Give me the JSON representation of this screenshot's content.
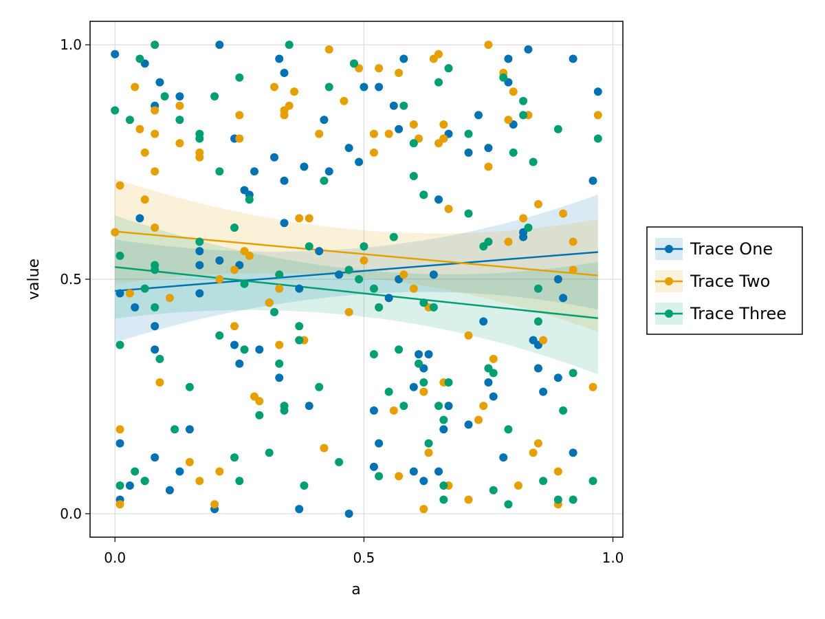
{
  "chart_data": {
    "type": "scatter",
    "title": "",
    "xlabel": "a",
    "ylabel": "value",
    "xlim": [
      -0.05,
      1.02
    ],
    "ylim": [
      -0.05,
      1.05
    ],
    "xticks": [
      0.0,
      0.5,
      1.0
    ],
    "yticks": [
      0.0,
      0.5,
      1.0
    ],
    "xtick_labels": [
      "0.0",
      "0.5",
      "1.0"
    ],
    "ytick_labels": [
      "0.0",
      "0.5",
      "1.0"
    ],
    "grid": true,
    "legend_position": "right",
    "series": [
      {
        "name": "Trace One",
        "color": "#0072b2",
        "fit": {
          "x": [
            0.0,
            0.97
          ],
          "y": [
            0.475,
            0.558
          ]
        },
        "band": {
          "lower": [
            0.365,
            0.435
          ],
          "upper": [
            0.585,
            0.68
          ]
        },
        "points": [
          [
            0.0,
            0.98
          ],
          [
            0.01,
            0.15
          ],
          [
            0.01,
            0.47
          ],
          [
            0.01,
            0.03
          ],
          [
            0.03,
            0.06
          ],
          [
            0.04,
            0.44
          ],
          [
            0.05,
            0.63
          ],
          [
            0.06,
            0.96
          ],
          [
            0.06,
            0.07
          ],
          [
            0.08,
            0.87
          ],
          [
            0.08,
            0.35
          ],
          [
            0.08,
            0.12
          ],
          [
            0.08,
            0.4
          ],
          [
            0.09,
            0.92
          ],
          [
            0.11,
            0.05
          ],
          [
            0.13,
            0.09
          ],
          [
            0.13,
            0.89
          ],
          [
            0.15,
            0.18
          ],
          [
            0.17,
            0.56
          ],
          [
            0.17,
            0.47
          ],
          [
            0.17,
            0.53
          ],
          [
            0.2,
            0.01
          ],
          [
            0.21,
            1.0
          ],
          [
            0.21,
            0.54
          ],
          [
            0.24,
            0.8
          ],
          [
            0.24,
            0.36
          ],
          [
            0.25,
            0.53
          ],
          [
            0.25,
            0.32
          ],
          [
            0.26,
            0.69
          ],
          [
            0.27,
            0.68
          ],
          [
            0.28,
            0.73
          ],
          [
            0.29,
            0.35
          ],
          [
            0.31,
            0.45
          ],
          [
            0.32,
            0.76
          ],
          [
            0.33,
            0.97
          ],
          [
            0.33,
            0.29
          ],
          [
            0.34,
            0.62
          ],
          [
            0.34,
            0.94
          ],
          [
            0.34,
            0.71
          ],
          [
            0.37,
            0.48
          ],
          [
            0.37,
            0.01
          ],
          [
            0.38,
            0.74
          ],
          [
            0.39,
            0.23
          ],
          [
            0.41,
            0.56
          ],
          [
            0.42,
            0.84
          ],
          [
            0.43,
            0.73
          ],
          [
            0.45,
            0.51
          ],
          [
            0.47,
            0.78
          ],
          [
            0.47,
            0.0
          ],
          [
            0.48,
            0.96
          ],
          [
            0.49,
            0.75
          ],
          [
            0.5,
            0.91
          ],
          [
            0.52,
            0.1
          ],
          [
            0.52,
            0.22
          ],
          [
            0.53,
            0.91
          ],
          [
            0.53,
            0.15
          ],
          [
            0.55,
            0.46
          ],
          [
            0.56,
            0.87
          ],
          [
            0.57,
            0.82
          ],
          [
            0.57,
            0.5
          ],
          [
            0.58,
            0.97
          ],
          [
            0.6,
            0.27
          ],
          [
            0.6,
            0.09
          ],
          [
            0.61,
            0.34
          ],
          [
            0.62,
            0.31
          ],
          [
            0.62,
            0.07
          ],
          [
            0.62,
            0.68
          ],
          [
            0.63,
            0.34
          ],
          [
            0.64,
            0.51
          ],
          [
            0.65,
            0.67
          ],
          [
            0.65,
            0.09
          ],
          [
            0.66,
            0.18
          ],
          [
            0.66,
            0.8
          ],
          [
            0.67,
            0.23
          ],
          [
            0.67,
            0.81
          ],
          [
            0.71,
            0.77
          ],
          [
            0.71,
            0.19
          ],
          [
            0.73,
            0.85
          ],
          [
            0.74,
            0.41
          ],
          [
            0.75,
            0.78
          ],
          [
            0.75,
            0.28
          ],
          [
            0.76,
            0.25
          ],
          [
            0.78,
            0.12
          ],
          [
            0.79,
            0.97
          ],
          [
            0.8,
            0.83
          ],
          [
            0.82,
            0.6
          ],
          [
            0.82,
            0.59
          ],
          [
            0.83,
            0.99
          ],
          [
            0.84,
            0.37
          ],
          [
            0.85,
            0.36
          ],
          [
            0.85,
            0.31
          ],
          [
            0.86,
            0.26
          ],
          [
            0.89,
            0.29
          ],
          [
            0.89,
            0.5
          ],
          [
            0.9,
            0.46
          ],
          [
            0.92,
            0.97
          ],
          [
            0.92,
            0.13
          ],
          [
            0.96,
            0.71
          ],
          [
            0.97,
            0.9
          ],
          [
            0.79,
            0.92
          ]
        ]
      },
      {
        "name": "Trace Two",
        "color": "#e69f00",
        "fit": {
          "x": [
            0.0,
            0.97
          ],
          "y": [
            0.602,
            0.508
          ]
        },
        "band": {
          "lower": [
            0.49,
            0.39
          ],
          "upper": [
            0.715,
            0.63
          ]
        },
        "points": [
          [
            0.0,
            0.6
          ],
          [
            0.01,
            0.7
          ],
          [
            0.01,
            0.18
          ],
          [
            0.01,
            0.02
          ],
          [
            0.03,
            0.47
          ],
          [
            0.04,
            0.91
          ],
          [
            0.05,
            0.82
          ],
          [
            0.06,
            0.67
          ],
          [
            0.06,
            0.77
          ],
          [
            0.08,
            0.86
          ],
          [
            0.08,
            0.81
          ],
          [
            0.08,
            0.73
          ],
          [
            0.08,
            0.61
          ],
          [
            0.09,
            0.28
          ],
          [
            0.11,
            0.46
          ],
          [
            0.13,
            0.79
          ],
          [
            0.13,
            0.87
          ],
          [
            0.15,
            0.11
          ],
          [
            0.17,
            0.77
          ],
          [
            0.17,
            0.76
          ],
          [
            0.17,
            0.07
          ],
          [
            0.2,
            0.02
          ],
          [
            0.21,
            0.09
          ],
          [
            0.21,
            0.5
          ],
          [
            0.24,
            0.4
          ],
          [
            0.24,
            0.52
          ],
          [
            0.25,
            0.8
          ],
          [
            0.25,
            0.85
          ],
          [
            0.26,
            0.56
          ],
          [
            0.27,
            0.55
          ],
          [
            0.28,
            0.25
          ],
          [
            0.29,
            0.24
          ],
          [
            0.31,
            0.45
          ],
          [
            0.32,
            0.91
          ],
          [
            0.33,
            0.48
          ],
          [
            0.33,
            0.36
          ],
          [
            0.34,
            0.86
          ],
          [
            0.34,
            0.85
          ],
          [
            0.35,
            0.87
          ],
          [
            0.36,
            0.9
          ],
          [
            0.37,
            0.63
          ],
          [
            0.38,
            0.37
          ],
          [
            0.39,
            0.63
          ],
          [
            0.41,
            0.81
          ],
          [
            0.42,
            0.14
          ],
          [
            0.43,
            0.99
          ],
          [
            0.46,
            0.88
          ],
          [
            0.47,
            0.43
          ],
          [
            0.48,
            0.96
          ],
          [
            0.49,
            0.95
          ],
          [
            0.5,
            0.54
          ],
          [
            0.52,
            0.81
          ],
          [
            0.52,
            0.77
          ],
          [
            0.53,
            0.95
          ],
          [
            0.53,
            0.44
          ],
          [
            0.55,
            0.81
          ],
          [
            0.56,
            0.22
          ],
          [
            0.57,
            0.94
          ],
          [
            0.57,
            0.08
          ],
          [
            0.58,
            0.51
          ],
          [
            0.6,
            0.83
          ],
          [
            0.6,
            0.48
          ],
          [
            0.61,
            0.8
          ],
          [
            0.62,
            0.26
          ],
          [
            0.62,
            0.01
          ],
          [
            0.63,
            0.13
          ],
          [
            0.63,
            0.44
          ],
          [
            0.64,
            0.97
          ],
          [
            0.65,
            0.98
          ],
          [
            0.65,
            0.79
          ],
          [
            0.66,
            0.28
          ],
          [
            0.66,
            0.8
          ],
          [
            0.66,
            0.83
          ],
          [
            0.67,
            0.06
          ],
          [
            0.67,
            0.65
          ],
          [
            0.71,
            0.38
          ],
          [
            0.71,
            0.03
          ],
          [
            0.73,
            0.2
          ],
          [
            0.74,
            0.23
          ],
          [
            0.75,
            1.0
          ],
          [
            0.75,
            0.74
          ],
          [
            0.76,
            0.33
          ],
          [
            0.78,
            0.94
          ],
          [
            0.79,
            0.84
          ],
          [
            0.79,
            0.58
          ],
          [
            0.8,
            0.9
          ],
          [
            0.81,
            0.06
          ],
          [
            0.82,
            0.63
          ],
          [
            0.83,
            0.85
          ],
          [
            0.84,
            0.13
          ],
          [
            0.85,
            0.66
          ],
          [
            0.85,
            0.15
          ],
          [
            0.86,
            0.37
          ],
          [
            0.89,
            0.09
          ],
          [
            0.89,
            0.02
          ],
          [
            0.9,
            0.64
          ],
          [
            0.92,
            0.58
          ],
          [
            0.92,
            0.52
          ],
          [
            0.96,
            0.27
          ],
          [
            0.97,
            0.85
          ]
        ]
      },
      {
        "name": "Trace Three",
        "color": "#009e73",
        "fit": {
          "x": [
            0.0,
            0.97
          ],
          "y": [
            0.526,
            0.417
          ]
        },
        "band": {
          "lower": [
            0.42,
            0.295
          ],
          "upper": [
            0.64,
            0.535
          ]
        },
        "points": [
          [
            0.0,
            0.86
          ],
          [
            0.01,
            0.36
          ],
          [
            0.01,
            0.55
          ],
          [
            0.01,
            0.06
          ],
          [
            0.03,
            0.84
          ],
          [
            0.04,
            0.09
          ],
          [
            0.05,
            0.97
          ],
          [
            0.06,
            0.07
          ],
          [
            0.06,
            0.48
          ],
          [
            0.08,
            1.0
          ],
          [
            0.08,
            0.52
          ],
          [
            0.08,
            0.53
          ],
          [
            0.08,
            0.44
          ],
          [
            0.09,
            0.33
          ],
          [
            0.1,
            0.89
          ],
          [
            0.12,
            0.18
          ],
          [
            0.13,
            0.84
          ],
          [
            0.15,
            0.27
          ],
          [
            0.17,
            0.81
          ],
          [
            0.17,
            0.8
          ],
          [
            0.17,
            0.58
          ],
          [
            0.2,
            0.89
          ],
          [
            0.21,
            0.38
          ],
          [
            0.21,
            0.73
          ],
          [
            0.24,
            0.61
          ],
          [
            0.24,
            0.12
          ],
          [
            0.25,
            0.07
          ],
          [
            0.25,
            0.93
          ],
          [
            0.26,
            0.35
          ],
          [
            0.26,
            0.49
          ],
          [
            0.27,
            0.67
          ],
          [
            0.29,
            0.21
          ],
          [
            0.31,
            0.13
          ],
          [
            0.32,
            0.43
          ],
          [
            0.33,
            0.51
          ],
          [
            0.33,
            0.32
          ],
          [
            0.34,
            0.23
          ],
          [
            0.34,
            0.22
          ],
          [
            0.35,
            1.0
          ],
          [
            0.37,
            0.4
          ],
          [
            0.37,
            0.37
          ],
          [
            0.38,
            0.06
          ],
          [
            0.39,
            0.57
          ],
          [
            0.41,
            0.27
          ],
          [
            0.42,
            0.71
          ],
          [
            0.43,
            0.91
          ],
          [
            0.45,
            0.11
          ],
          [
            0.47,
            0.52
          ],
          [
            0.48,
            0.96
          ],
          [
            0.49,
            0.5
          ],
          [
            0.5,
            0.57
          ],
          [
            0.52,
            0.48
          ],
          [
            0.52,
            0.34
          ],
          [
            0.53,
            0.44
          ],
          [
            0.53,
            0.08
          ],
          [
            0.55,
            0.26
          ],
          [
            0.56,
            0.59
          ],
          [
            0.57,
            0.35
          ],
          [
            0.58,
            0.87
          ],
          [
            0.58,
            0.23
          ],
          [
            0.6,
            0.79
          ],
          [
            0.6,
            0.72
          ],
          [
            0.61,
            0.32
          ],
          [
            0.62,
            0.45
          ],
          [
            0.62,
            0.28
          ],
          [
            0.62,
            0.68
          ],
          [
            0.63,
            0.15
          ],
          [
            0.64,
            0.44
          ],
          [
            0.65,
            0.23
          ],
          [
            0.65,
            0.92
          ],
          [
            0.66,
            0.2
          ],
          [
            0.66,
            0.06
          ],
          [
            0.66,
            0.03
          ],
          [
            0.67,
            0.28
          ],
          [
            0.67,
            0.95
          ],
          [
            0.71,
            0.64
          ],
          [
            0.71,
            0.81
          ],
          [
            0.74,
            0.57
          ],
          [
            0.75,
            0.31
          ],
          [
            0.75,
            0.58
          ],
          [
            0.76,
            0.3
          ],
          [
            0.76,
            0.05
          ],
          [
            0.78,
            0.93
          ],
          [
            0.79,
            0.18
          ],
          [
            0.79,
            0.02
          ],
          [
            0.8,
            0.77
          ],
          [
            0.82,
            0.88
          ],
          [
            0.82,
            0.85
          ],
          [
            0.83,
            0.61
          ],
          [
            0.84,
            0.75
          ],
          [
            0.85,
            0.41
          ],
          [
            0.85,
            0.48
          ],
          [
            0.86,
            0.07
          ],
          [
            0.89,
            0.03
          ],
          [
            0.89,
            0.82
          ],
          [
            0.9,
            0.22
          ],
          [
            0.92,
            0.3
          ],
          [
            0.92,
            0.03
          ],
          [
            0.96,
            0.07
          ],
          [
            0.97,
            0.8
          ]
        ]
      }
    ]
  }
}
